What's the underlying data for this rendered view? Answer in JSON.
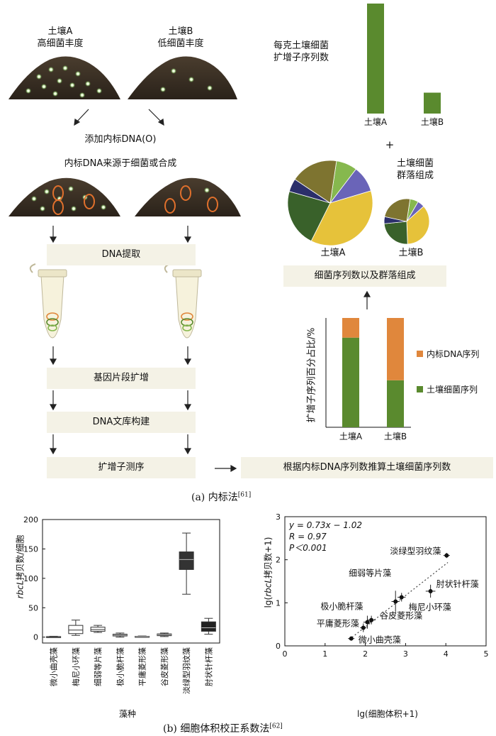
{
  "part_a": {
    "soil_a_line1": "土壤A",
    "soil_a_line2": "高细菌丰度",
    "soil_b_line1": "土壤B",
    "soil_b_line2": "低细菌丰度",
    "add_internal_standard": "添加内标DNA(O)",
    "internal_standard_source": "内标DNA来源于细菌或合成",
    "steps": [
      "DNA提取",
      "基因片段扩增",
      "DNA文库构建",
      "扩增子测序"
    ],
    "final_box": "根据内标DNA序列数推算土壤细菌序列数",
    "bar_top_label_line1": "每克土壤细菌",
    "bar_top_label_line2": "扩增子序列数",
    "plus": "+",
    "community_label_line1": "土壤细菌",
    "community_label_line2": "群落组成",
    "pie_a_label": "土壤A",
    "pie_b_label": "土壤B",
    "composition_box": "细菌序列数以及群落组成",
    "stacked_ylabel": "扩增子序列百分占比/%",
    "legend_internal": "内标DNA序列",
    "legend_soil": "土壤细菌序列",
    "caption_a": "(a)  内标法",
    "caption_a_ref": "[61]",
    "colors": {
      "green": "#5a8a2e",
      "orange": "#e0873c",
      "yellow": "#e6c23a",
      "navy": "#2b2f6a",
      "purple": "#6a64b8",
      "olive": "#7e7430",
      "darkgreen": "#39612a",
      "lightgreen": "#86b84e",
      "stepbg": "#f4f2e6"
    }
  },
  "chart_data": [
    {
      "type": "bar",
      "title": "每克土壤细菌扩增子序列数",
      "categories": [
        "土壤A",
        "土壤B"
      ],
      "values": [
        1.0,
        0.19
      ]
    },
    {
      "type": "pie",
      "name": "土壤A",
      "slices": [
        {
          "color": "#86b84e",
          "value": 0.08
        },
        {
          "color": "#6a64b8",
          "value": 0.1
        },
        {
          "color": "#e6c23a",
          "value": 0.37
        },
        {
          "color": "#39612a",
          "value": 0.22
        },
        {
          "color": "#2b2f6a",
          "value": 0.05
        },
        {
          "color": "#7e7430",
          "value": 0.18
        }
      ]
    },
    {
      "type": "pie",
      "name": "土壤B",
      "slices": [
        {
          "color": "#86b84e",
          "value": 0.06
        },
        {
          "color": "#6a64b8",
          "value": 0.05
        },
        {
          "color": "#e6c23a",
          "value": 0.36
        },
        {
          "color": "#39612a",
          "value": 0.24
        },
        {
          "color": "#2b2f6a",
          "value": 0.05
        },
        {
          "color": "#7e7430",
          "value": 0.24
        }
      ]
    },
    {
      "type": "bar",
      "stacked": true,
      "ylabel": "扩增子序列百分占比/%",
      "categories": [
        "土壤A",
        "土壤B"
      ],
      "series": [
        {
          "name": "土壤细菌序列",
          "color": "#5a8a2e",
          "values": [
            82,
            43
          ]
        },
        {
          "name": "内标DNA序列",
          "color": "#e0873c",
          "values": [
            18,
            57
          ]
        }
      ],
      "ylim": [
        0,
        100
      ]
    },
    {
      "type": "box",
      "ylabel_italic": "rbcL",
      "ylabel": "拷贝数/细胞",
      "xlabel": "藻种",
      "ylim": [
        -10,
        200
      ],
      "yticks": [
        0,
        50,
        100,
        150,
        200
      ],
      "categories": [
        "微小曲壳藻",
        "梅尼小环藻",
        "细弱等片藻",
        "极小脆杆藻",
        "平庸菱形藻",
        "谷皮菱形藻",
        "淡绿型羽纹藻",
        "肘状针杆藻"
      ],
      "boxes": [
        {
          "min": 0,
          "q1": 0.3,
          "median": 0.6,
          "q3": 1,
          "max": 1.5,
          "fill": "#ffffff"
        },
        {
          "min": 3,
          "q1": 6,
          "median": 12,
          "q3": 20,
          "max": 29,
          "fill": "#ffffff"
        },
        {
          "min": 8,
          "q1": 10,
          "median": 13,
          "q3": 17,
          "max": 20,
          "fill": "#ffffff"
        },
        {
          "min": 0,
          "q1": 2,
          "median": 3.5,
          "q3": 5,
          "max": 7,
          "fill": "#888888"
        },
        {
          "min": 0,
          "q1": 0.5,
          "median": 1,
          "q3": 1.5,
          "max": 2,
          "fill": "#888888"
        },
        {
          "min": 1,
          "q1": 2.5,
          "median": 4,
          "q3": 5.5,
          "max": 7,
          "fill": "#888888"
        },
        {
          "min": 73,
          "q1": 115,
          "median": 132,
          "q3": 145,
          "max": 177,
          "fill": "#333333"
        },
        {
          "min": 5,
          "q1": 10,
          "median": 16,
          "q3": 26,
          "max": 32,
          "fill": "#222222"
        }
      ]
    },
    {
      "type": "scatter",
      "xlabel": "lg(细胞体积+1)",
      "ylabel": "lg(rbcL拷贝数+1)",
      "ylabel_italic": "rbcL",
      "xlim": [
        0,
        5
      ],
      "ylim": [
        0,
        3
      ],
      "xticks": [
        0,
        1,
        2,
        3,
        4,
        5
      ],
      "yticks": [
        0,
        1,
        2,
        3
      ],
      "fit": {
        "slope": 0.73,
        "intercept": -1.02,
        "x_range": [
          1.6,
          4.05
        ]
      },
      "annotations": [
        "y = 0.73x − 1.02",
        "R = 0.97",
        "P＜0.001"
      ],
      "points": [
        {
          "label": "微小曲壳藻",
          "x": 1.65,
          "y": 0.17,
          "xerr": 0.08,
          "yerr": 0.05
        },
        {
          "label": "平庸菱形藻",
          "x": 1.95,
          "y": 0.42,
          "xerr": 0.08,
          "yerr": 0.1
        },
        {
          "label": "谷皮菱形藻",
          "x": 2.15,
          "y": 0.6,
          "xerr": 0.1,
          "yerr": 0.1
        },
        {
          "label": "极小脆杆藻",
          "x": 2.05,
          "y": 0.55,
          "xerr": 0.1,
          "yerr": 0.15
        },
        {
          "label": "细弱等片藻",
          "x": 2.75,
          "y": 1.03,
          "xerr": 0.1,
          "yerr": 0.25
        },
        {
          "label": "梅尼小环藻",
          "x": 2.9,
          "y": 1.13,
          "xerr": 0.1,
          "yerr": 0.1
        },
        {
          "label": "肘状针杆藻",
          "x": 3.62,
          "y": 1.27,
          "xerr": 0.12,
          "yerr": 0.15
        },
        {
          "label": "淡绿型羽纹藻",
          "x": 4.02,
          "y": 2.1,
          "xerr": 0.08,
          "yerr": 0.06
        }
      ]
    }
  ],
  "part_b": {
    "caption_b": "(b)  细胞体积校正系数法",
    "caption_b_ref": "[62]",
    "box_ylabel_rest": "拷贝数/细胞",
    "box_ylabel_italic": "rbcL",
    "box_xlabel": "藻种",
    "scatter_xlabel": "lg(细胞体积+1)",
    "scatter_ylabel_pre": "lg(",
    "scatter_ylabel_italic": "rbcL",
    "scatter_ylabel_post": "拷贝数+1)"
  }
}
